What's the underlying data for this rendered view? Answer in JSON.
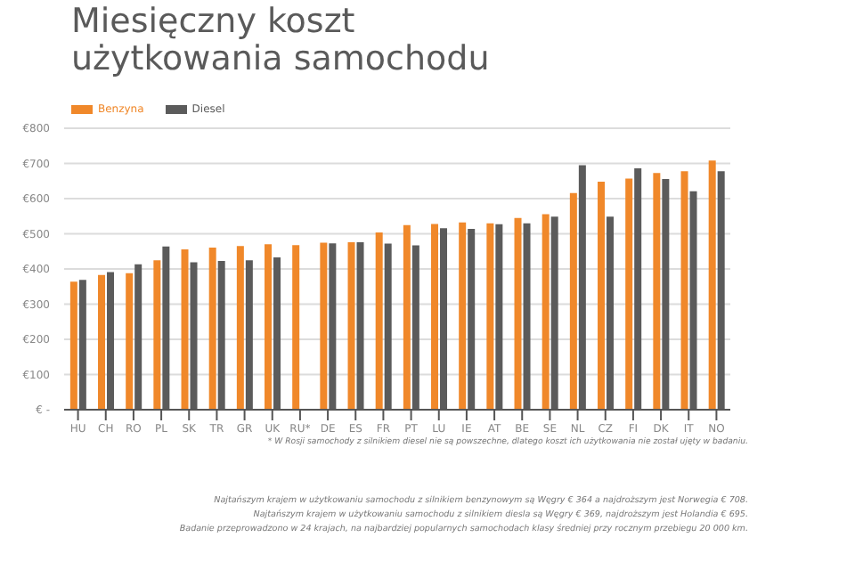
{
  "chart_data": {
    "type": "bar",
    "title": "Miesięczny koszt użytkowania samochodu",
    "categories": [
      "HU",
      "CH",
      "RO",
      "PL",
      "SK",
      "TR",
      "GR",
      "UK",
      "RU*",
      "DE",
      "ES",
      "FR",
      "PT",
      "LU",
      "IE",
      "AT",
      "BE",
      "SE",
      "NL",
      "CZ",
      "FI",
      "DK",
      "IT",
      "NO"
    ],
    "series": [
      {
        "name": "Benzyna",
        "color": "#f0882a",
        "values": [
          364,
          383,
          388,
          425,
          456,
          461,
          465,
          470,
          468,
          475,
          476,
          504,
          525,
          528,
          532,
          530,
          545,
          556,
          616,
          648,
          657,
          673,
          678,
          708
        ]
      },
      {
        "name": "Diesel",
        "color": "#5b5b5b",
        "values": [
          369,
          391,
          413,
          464,
          419,
          423,
          425,
          433,
          null,
          473,
          476,
          472,
          467,
          516,
          514,
          527,
          530,
          549,
          695,
          549,
          686,
          656,
          621,
          678
        ]
      }
    ],
    "ylim": [
      0,
      800
    ],
    "yticks": [
      {
        "value": 0,
        "label": "€ -"
      },
      {
        "value": 100,
        "label": "€100"
      },
      {
        "value": 200,
        "label": "€200"
      },
      {
        "value": 300,
        "label": "€300"
      },
      {
        "value": 400,
        "label": "€400"
      },
      {
        "value": 500,
        "label": "€500"
      },
      {
        "value": 600,
        "label": "€600"
      },
      {
        "value": 700,
        "label": "€700"
      },
      {
        "value": 800,
        "label": "€800"
      }
    ],
    "grid": "y",
    "legend": "top left",
    "annotations": [
      "* W Rosji samochody z silnikiem diesel nie są powszechne, dlatego koszt ich użytkowania nie został ujęty w badaniu.",
      "Najtańszym krajem w użytkowaniu samochodu z silnikiem benzynowym są Węgry € 364 a najdroższym jest Norwegia € 708.",
      "Najtańszym krajem w użytkowaniu samochodu z silnikiem diesla są Węgry € 369, najdroższym jest Holandia € 695.",
      "Badanie przeprowadzono w 24 krajach, na najbardziej popularnych samochodach klasy średniej przy rocznym przebiegu 20 000 km."
    ]
  }
}
